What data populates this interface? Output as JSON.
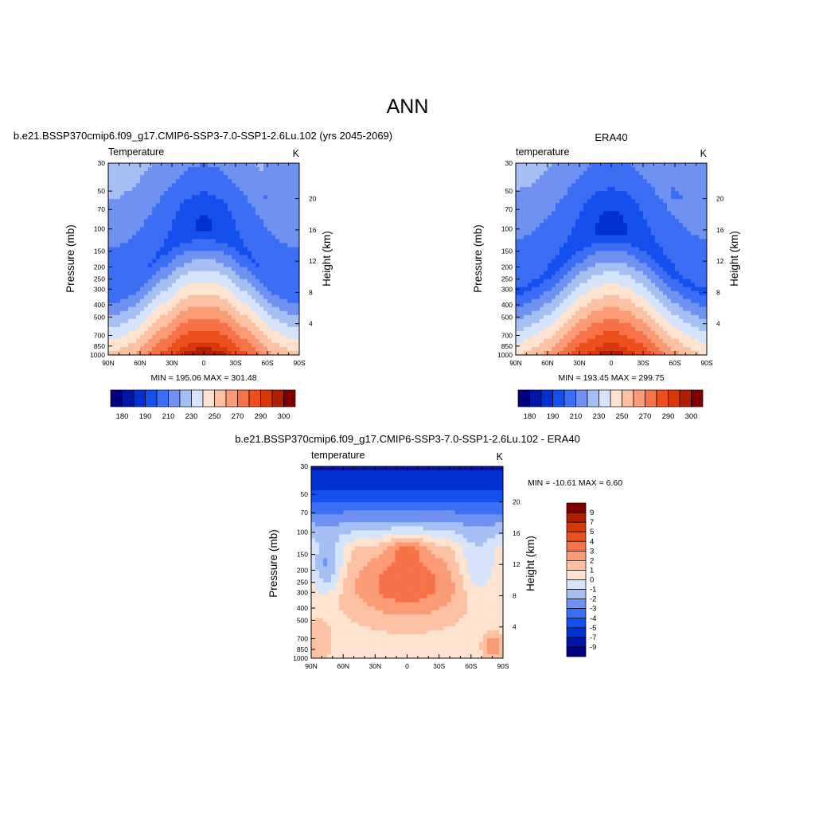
{
  "figure": {
    "title": "ANN"
  },
  "chart_data": [
    {
      "type": "heatmap",
      "caption": "b.e21.BSSP370cmip6.f09_g17.CMIP6-SSP3-7.0-SSP1-2.6Lu.102 (yrs 2045-2069)",
      "title": "Temperature",
      "units": "K",
      "xlabel": "",
      "ylabel": "Pressure (mb)",
      "ylabel_right": "Height (km)",
      "x_ticks": [
        "90N",
        "60N",
        "30N",
        "0",
        "30S",
        "60S",
        "90S"
      ],
      "y_ticks": [
        "30",
        "50",
        "70",
        "100",
        "150",
        "200",
        "250",
        "300",
        "400",
        "500",
        "700",
        "850",
        "1000"
      ],
      "right_ticks": [
        "20",
        "16",
        "12",
        "8",
        "4"
      ],
      "y_scale": "log",
      "ylim": [
        1000,
        30
      ],
      "stats": "MIN = 195.06  MAX = 301.48",
      "min": 195.06,
      "max": 301.48,
      "colorbar": {
        "orientation": "horizontal",
        "labels": [
          "180",
          "190",
          "210",
          "230",
          "250",
          "270",
          "290",
          "300"
        ],
        "colors": [
          "#00007f",
          "#0015a8",
          "#0030cf",
          "#1450f0",
          "#3c6ef5",
          "#6f92f2",
          "#a6bff2",
          "#d5e3fb",
          "#fde3d0",
          "#fcc1a3",
          "#fa9b76",
          "#f77248",
          "#ee4f1e",
          "#d8380a",
          "#b02000",
          "#800000"
        ]
      }
    },
    {
      "type": "heatmap",
      "caption": "ERA40",
      "title": "temperature",
      "units": "K",
      "xlabel": "",
      "ylabel": "Pressure (mb)",
      "ylabel_right": "Height (km)",
      "x_ticks": [
        "90N",
        "60N",
        "30N",
        "0",
        "30S",
        "60S",
        "90S"
      ],
      "y_ticks": [
        "30",
        "50",
        "70",
        "100",
        "150",
        "200",
        "250",
        "300",
        "400",
        "500",
        "700",
        "850",
        "1000"
      ],
      "right_ticks": [
        "20",
        "16",
        "12",
        "8",
        "4"
      ],
      "y_scale": "log",
      "ylim": [
        1000,
        30
      ],
      "stats": "MIN = 193.45  MAX = 299.75",
      "min": 193.45,
      "max": 299.75,
      "colorbar": {
        "orientation": "horizontal",
        "labels": [
          "180",
          "190",
          "210",
          "230",
          "250",
          "270",
          "290",
          "300"
        ],
        "colors": [
          "#00007f",
          "#0015a8",
          "#0030cf",
          "#1450f0",
          "#3c6ef5",
          "#6f92f2",
          "#a6bff2",
          "#d5e3fb",
          "#fde3d0",
          "#fcc1a3",
          "#fa9b76",
          "#f77248",
          "#ee4f1e",
          "#d8380a",
          "#b02000",
          "#800000"
        ]
      }
    },
    {
      "type": "heatmap",
      "caption": "b.e21.BSSP370cmip6.f09_g17.CMIP6-SSP3-7.0-SSP1-2.6Lu.102 - ERA40",
      "title": "temperature",
      "units": "K",
      "xlabel": "",
      "ylabel": "Pressure (mb)",
      "ylabel_right": "Height (km)",
      "x_ticks": [
        "90N",
        "60N",
        "30N",
        "0",
        "30S",
        "60S",
        "90S"
      ],
      "y_ticks": [
        "30",
        "50",
        "70",
        "100",
        "150",
        "200",
        "250",
        "300",
        "400",
        "500",
        "700",
        "850",
        "1000"
      ],
      "right_ticks": [
        "20",
        "16",
        "12",
        "8",
        "4"
      ],
      "y_scale": "log",
      "ylim": [
        1000,
        30
      ],
      "stats": "MIN = -10.61  MAX =   6.60",
      "min": -10.61,
      "max": 6.6,
      "colorbar": {
        "orientation": "vertical",
        "labels": [
          "9",
          "7",
          "5",
          "4",
          "3",
          "2",
          "1",
          "0",
          "-1",
          "-2",
          "-3",
          "-4",
          "-5",
          "-7",
          "-9"
        ],
        "colors": [
          "#800000",
          "#b02000",
          "#d8380a",
          "#ee4f1e",
          "#f77248",
          "#fa9b76",
          "#fcc1a3",
          "#fde3d0",
          "#d5e3fb",
          "#a6bff2",
          "#6f92f2",
          "#3c6ef5",
          "#1450f0",
          "#0030cf",
          "#0015a8",
          "#00007f"
        ]
      }
    }
  ]
}
